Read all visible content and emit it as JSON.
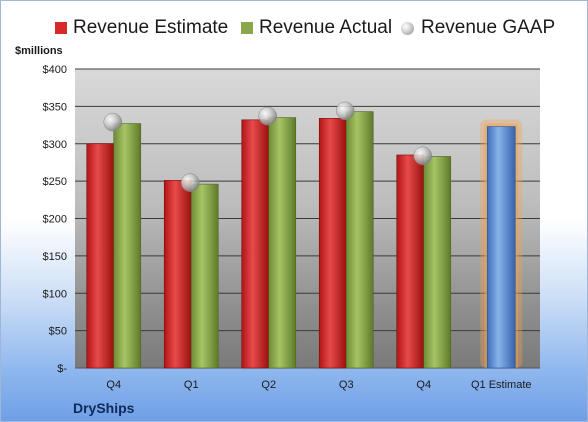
{
  "chart_data": {
    "type": "bar",
    "ylabel": "$millions",
    "ylim": [
      0,
      400
    ],
    "yticks": [
      "$-",
      "$50",
      "$100",
      "$150",
      "$200",
      "$250",
      "$300",
      "$350",
      "$400"
    ],
    "categories": [
      "Q4",
      "Q1",
      "Q2",
      "Q3",
      "Q4",
      "Q1 Estimate"
    ],
    "series": [
      {
        "name": "Revenue Estimate",
        "type": "bar",
        "color": "#d42a2a",
        "values": [
          300,
          251,
          332,
          334,
          285,
          null
        ]
      },
      {
        "name": "Revenue Actual",
        "type": "bar",
        "color": "#8aa84a",
        "values": [
          327,
          246,
          335,
          343,
          283,
          null
        ]
      },
      {
        "name": "Revenue GAAP",
        "type": "marker",
        "color": "#b8b8b8",
        "values": [
          329,
          248,
          337,
          344,
          284,
          null
        ]
      }
    ],
    "forecast": {
      "category": "Q1 Estimate",
      "value": 323,
      "color": "#5b8fd6",
      "glow": "#f5a04a"
    },
    "grid": true,
    "legend": "top"
  },
  "footer": {
    "company": "DryShips"
  }
}
